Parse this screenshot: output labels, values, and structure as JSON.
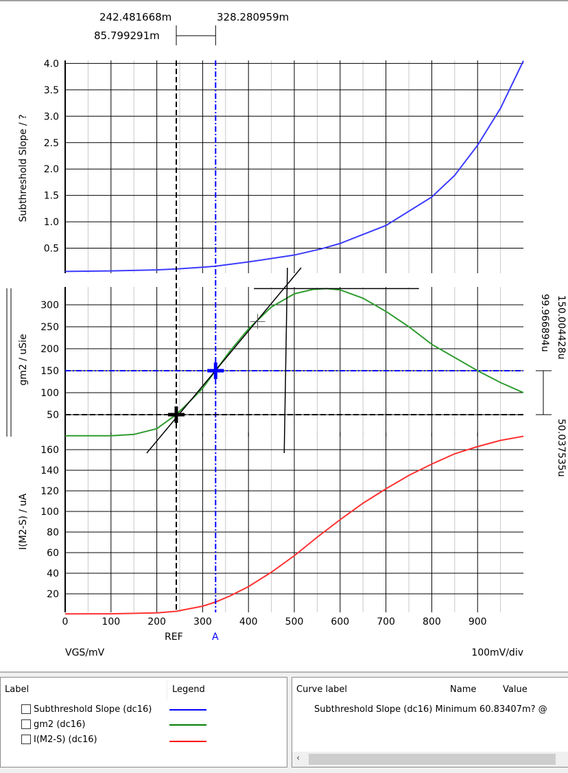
{
  "cursors": {
    "ref_value": "242.481668m",
    "a_value": "328.280959m",
    "delta_x": "85.799291m",
    "ref_label": "REF",
    "a_label": "A",
    "y_a": "150.004428u",
    "y_delta": "99.966894u",
    "y_ref": "50.037535u"
  },
  "colors": {
    "slope": "#3a3aff",
    "gm2": "#2e9b2e",
    "current": "#ff3030",
    "cursor_a": "#0000ff",
    "cursor_ref": "#000000"
  },
  "chart_data": [
    {
      "type": "line",
      "ylabel": "Subthreshold Slope / ?",
      "xlim": [
        0,
        1000
      ],
      "ylim": [
        0,
        4.0
      ],
      "yticks": [
        "0.5",
        "1.0",
        "1.5",
        "2.0",
        "2.5",
        "3.0",
        "3.5",
        "4.0"
      ],
      "grid": true,
      "x": [
        0,
        100,
        200,
        250,
        300,
        328,
        400,
        500,
        560,
        600,
        700,
        800,
        850,
        900,
        950,
        1000
      ],
      "values": [
        0.06,
        0.07,
        0.09,
        0.11,
        0.14,
        0.16,
        0.24,
        0.37,
        0.49,
        0.59,
        0.93,
        1.47,
        1.88,
        2.45,
        3.15,
        4.05
      ]
    },
    {
      "type": "line",
      "ylabel": "gm2 / uSie",
      "xlim": [
        0,
        1000
      ],
      "ylim": [
        0,
        340
      ],
      "yticks": [
        "50",
        "100",
        "150",
        "200",
        "250",
        "300"
      ],
      "grid": true,
      "x": [
        0,
        100,
        150,
        200,
        242,
        270,
        300,
        328,
        360,
        400,
        450,
        500,
        540,
        570,
        600,
        650,
        700,
        750,
        800,
        850,
        900,
        950,
        1000
      ],
      "values": [
        2,
        2,
        5,
        18,
        50,
        78,
        110,
        150,
        195,
        245,
        295,
        325,
        335,
        337,
        334,
        315,
        285,
        250,
        210,
        180,
        150,
        123,
        100
      ]
    },
    {
      "type": "line",
      "ylabel": "I(M2-S) / uA",
      "xlabel": "VGS/mV",
      "scale_note": "100mV/div",
      "xlim": [
        0,
        1000
      ],
      "ylim": [
        0,
        175
      ],
      "xticks": [
        "0",
        "100",
        "200",
        "300",
        "400",
        "500",
        "600",
        "700",
        "800",
        "900"
      ],
      "yticks": [
        "20",
        "40",
        "60",
        "80",
        "100",
        "120",
        "140",
        "160"
      ],
      "grid": true,
      "x": [
        0,
        100,
        200,
        242,
        300,
        328,
        360,
        400,
        450,
        500,
        550,
        600,
        650,
        700,
        750,
        800,
        850,
        900,
        950,
        1000
      ],
      "values": [
        0.5,
        0.6,
        1.5,
        3,
        8,
        12,
        18,
        27,
        41,
        57,
        75,
        92,
        108,
        122,
        135,
        146,
        156,
        163,
        169,
        173
      ]
    }
  ],
  "legend": {
    "label_header": "Label",
    "legend_header": "Legend",
    "items": [
      {
        "label": "Subthreshold Slope (dc16)",
        "color": "#0000ff"
      },
      {
        "label": "gm2 (dc16)",
        "color": "#008000"
      },
      {
        "label": "I(M2-S) (dc16)",
        "color": "#ff0000"
      }
    ]
  },
  "measurements": {
    "headers": [
      "Curve label",
      "Name",
      "Value"
    ],
    "rows": [
      {
        "curve": "Subthreshold Slope (dc16)",
        "name": "Minimum",
        "value": "60.83407m? @"
      }
    ]
  }
}
